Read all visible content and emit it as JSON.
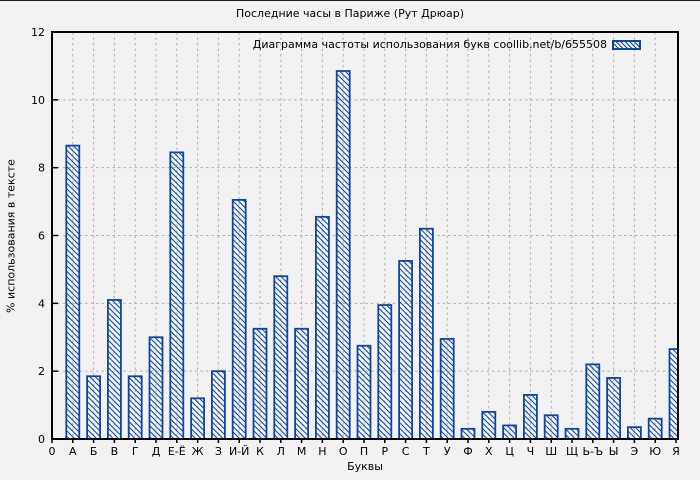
{
  "title": "Последние часы в Париже (Рут Дрюар)",
  "legend": {
    "label": "Диаграмма частоты использования букв coollib.net/b/655508",
    "swatch_style": "hatched-bar"
  },
  "axes": {
    "y_label": "% использования в тексте",
    "x_label": "Буквы",
    "origin_label": "0",
    "y_ticks": [
      0,
      2,
      4,
      6,
      8,
      10,
      12
    ]
  },
  "colors": {
    "bar": "#0d47a1",
    "background": "#f2f2f2",
    "grid": "#b0b0b0",
    "frame": "#000000",
    "text": "#000000"
  },
  "chart_data": {
    "type": "bar",
    "title": "Последние часы в Париже (Рут Дрюар)",
    "categories": [
      "А",
      "Б",
      "В",
      "Г",
      "Д",
      "Е-Ё",
      "Ж",
      "З",
      "И-Й",
      "К",
      "Л",
      "М",
      "Н",
      "О",
      "П",
      "Р",
      "С",
      "Т",
      "У",
      "Ф",
      "Х",
      "Ц",
      "Ч",
      "Ш",
      "Щ",
      "Ь-Ъ",
      "Ы",
      "Э",
      "Ю",
      "Я"
    ],
    "values": [
      8.65,
      1.85,
      4.1,
      1.85,
      3.0,
      8.45,
      1.2,
      2.0,
      7.05,
      3.25,
      4.8,
      3.25,
      6.55,
      10.85,
      2.75,
      3.95,
      5.25,
      6.2,
      2.95,
      0.3,
      0.8,
      0.4,
      1.3,
      0.7,
      0.3,
      2.2,
      1.8,
      0.35,
      0.6,
      2.65
    ],
    "xlabel": "Буквы",
    "ylabel": "% использования в тексте",
    "ylim": [
      0,
      12
    ],
    "grid": true,
    "grid_style": "dashed",
    "legend_entry": "Диаграмма частоты использования букв coollib.net/b/655508",
    "legend_position": "top-right-inside",
    "bar_style": "blue-diagonal-hatch"
  }
}
